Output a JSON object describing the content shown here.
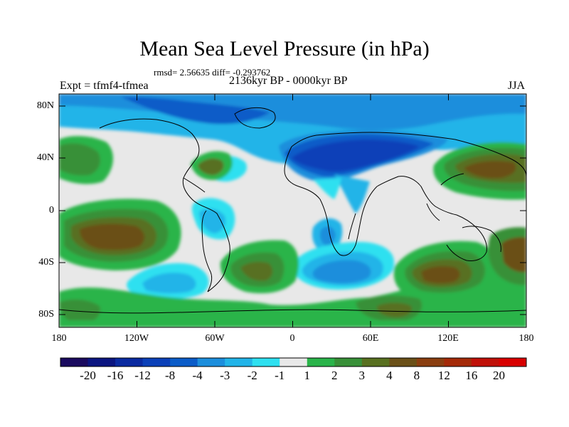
{
  "title": "Mean Sea Level Pressure (in hPa)",
  "stats": "rmsd= 2.56635 diff= -0.293762",
  "left_label": "Expt = tfmf4-tfmea",
  "center_label": "2136kyr BP - 0000kyr BP",
  "right_label": "JJA",
  "lat_labels": [
    "80N",
    "40N",
    "0",
    "40S",
    "80S"
  ],
  "lon_labels": [
    "180",
    "120W",
    "60W",
    "0",
    "60E",
    "120E",
    "180"
  ],
  "colorbar": {
    "levels": [
      "-20",
      "-16",
      "-12",
      "-8",
      "-4",
      "-3",
      "-2",
      "-1",
      "1",
      "2",
      "3",
      "4",
      "8",
      "12",
      "16",
      "20"
    ],
    "colors": [
      "#1a0a5e",
      "#0b1580",
      "#0a2aa0",
      "#0b40b8",
      "#0b5cc8",
      "#1c8edc",
      "#22b4e8",
      "#2ee0f0",
      "#e8e8e8",
      "#2ab44a",
      "#389038",
      "#587020",
      "#6a5018",
      "#8a3e10",
      "#a42a08",
      "#c01008",
      "#d80000"
    ]
  }
}
